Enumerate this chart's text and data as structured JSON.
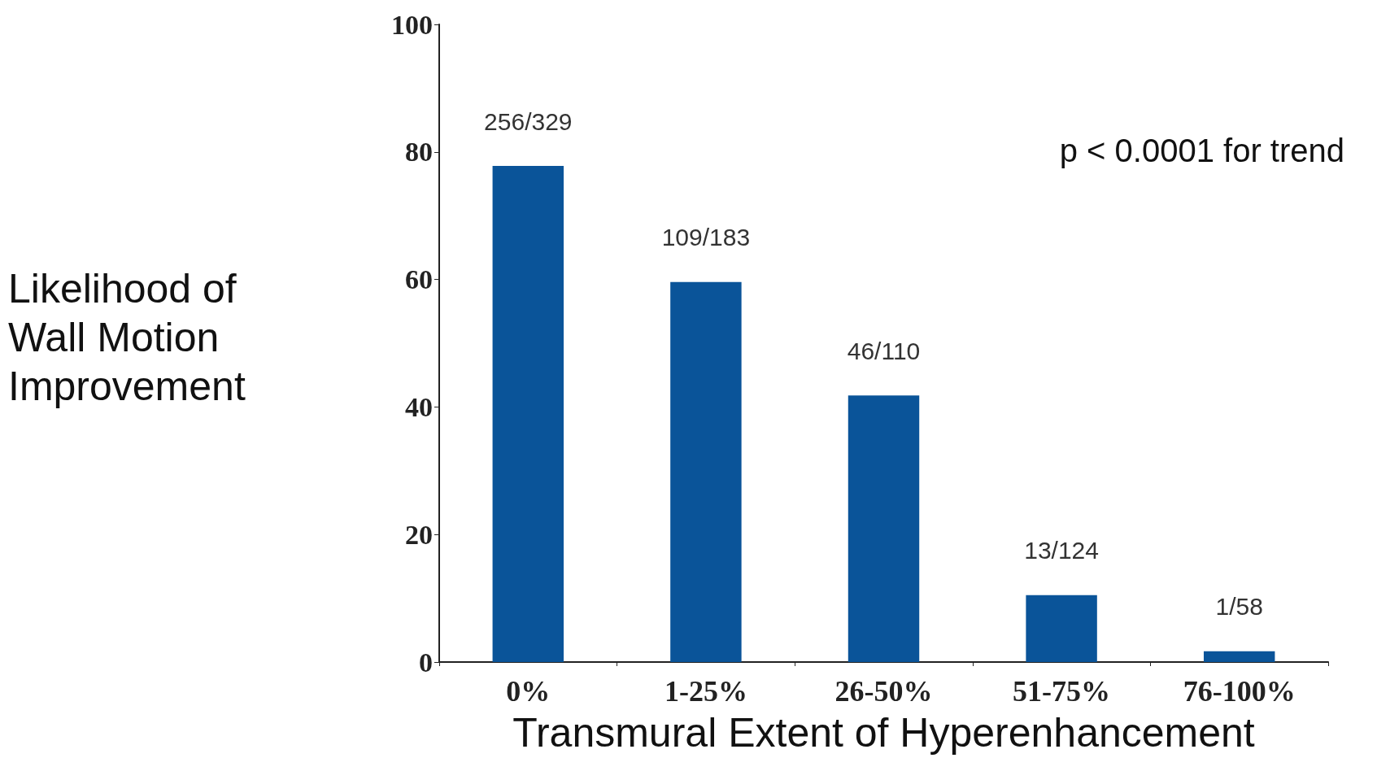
{
  "chart_data": {
    "type": "bar",
    "xlabel": "Transmural Extent of Hyperenhancement",
    "ylabel": "Likelihood of Wall Motion Improvement",
    "categories": [
      "0%",
      "1-25%",
      "26-50%",
      "51-75%",
      "76-100%"
    ],
    "values": [
      77.8,
      59.6,
      41.8,
      10.5,
      1.7
    ],
    "value_labels": [
      "256/329",
      "109/183",
      "46/110",
      "13/124",
      "1/58"
    ],
    "color": "#0a5499",
    "ylim": [
      0,
      100
    ],
    "yticks": [
      0,
      20,
      40,
      60,
      80,
      100
    ],
    "grid": false,
    "annotations": [
      "p < 0.0001 for trend"
    ]
  }
}
